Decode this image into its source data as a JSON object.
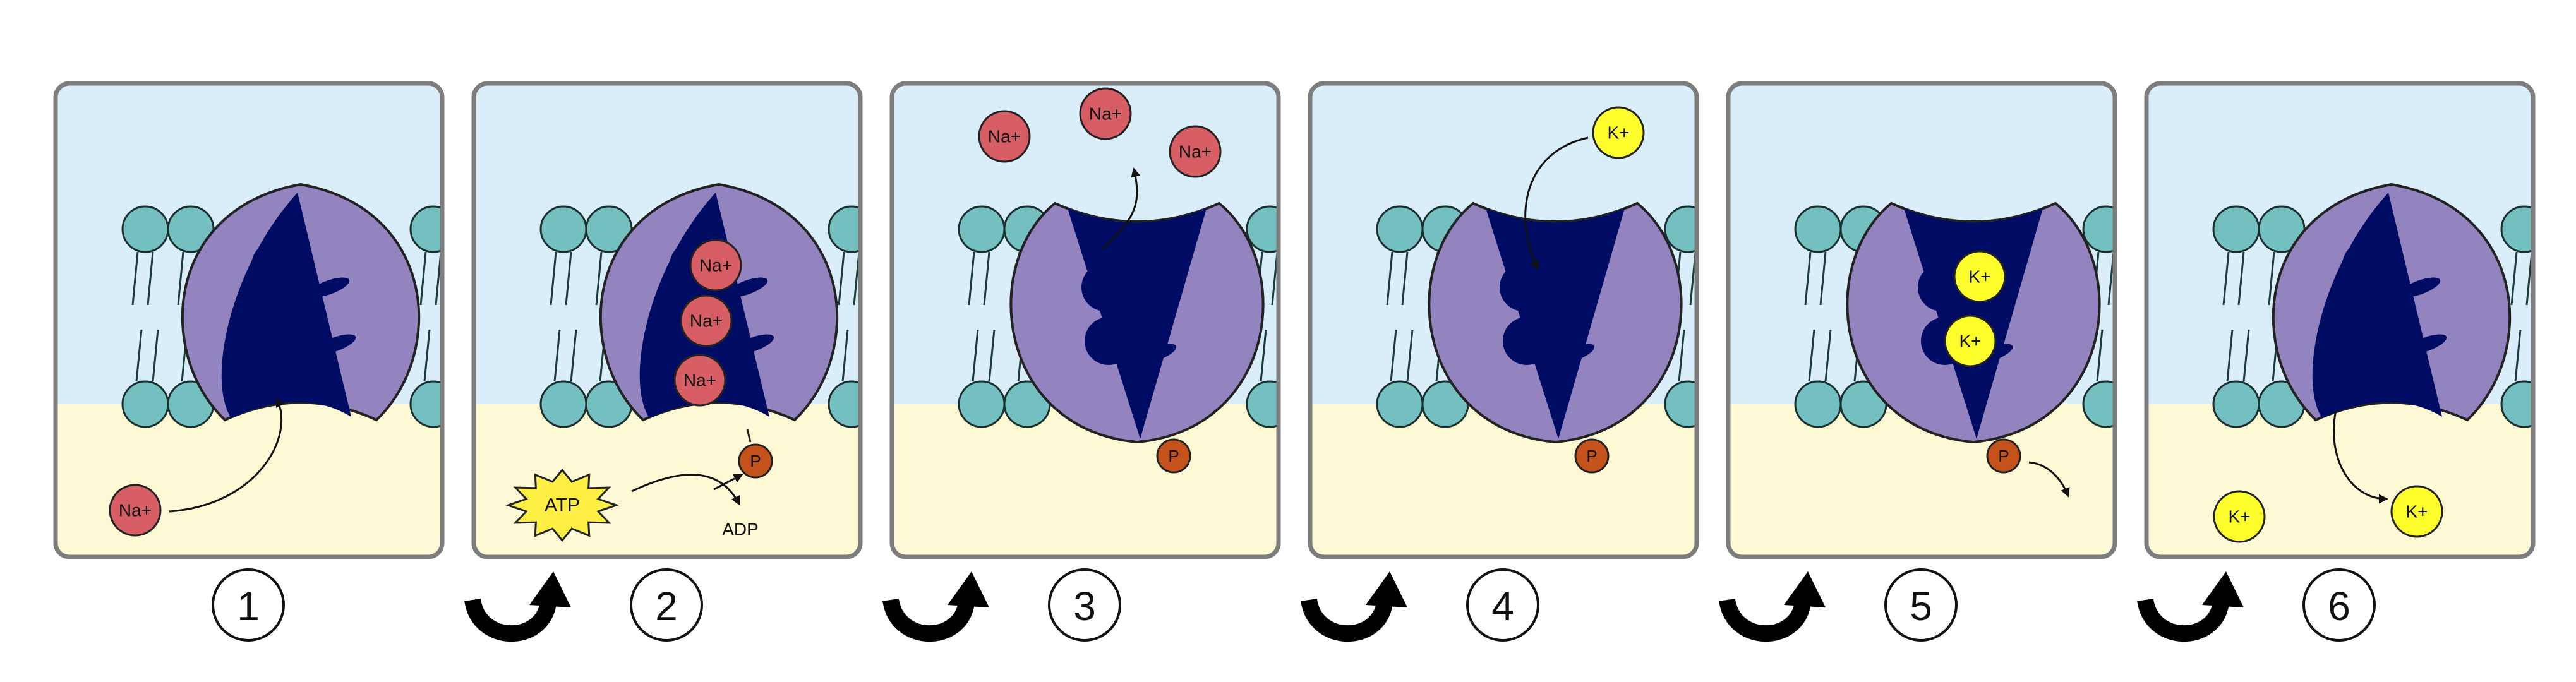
{
  "colors": {
    "extracellular": "#d9eef9",
    "cytoplasm": "#fdf9d5",
    "frame": "#7d7d7d",
    "head": "#74bfbf",
    "protein": "#9384bf",
    "channel": "#000c63",
    "sodium": "#d65e64",
    "potassium": "#ffff2e",
    "phosphate": "#c4521a",
    "atp": "#ffef44"
  },
  "ions": {
    "sodium": "Na+",
    "potassium": "K+"
  },
  "molecules": {
    "atp": "ATP",
    "adp": "ADP",
    "phosphate": "P"
  },
  "panels": [
    {
      "step": "1"
    },
    {
      "step": "2"
    },
    {
      "step": "3"
    },
    {
      "step": "4"
    },
    {
      "step": "5"
    },
    {
      "step": "6"
    }
  ],
  "icons": {
    "transition": "curved-arrow-icon"
  }
}
